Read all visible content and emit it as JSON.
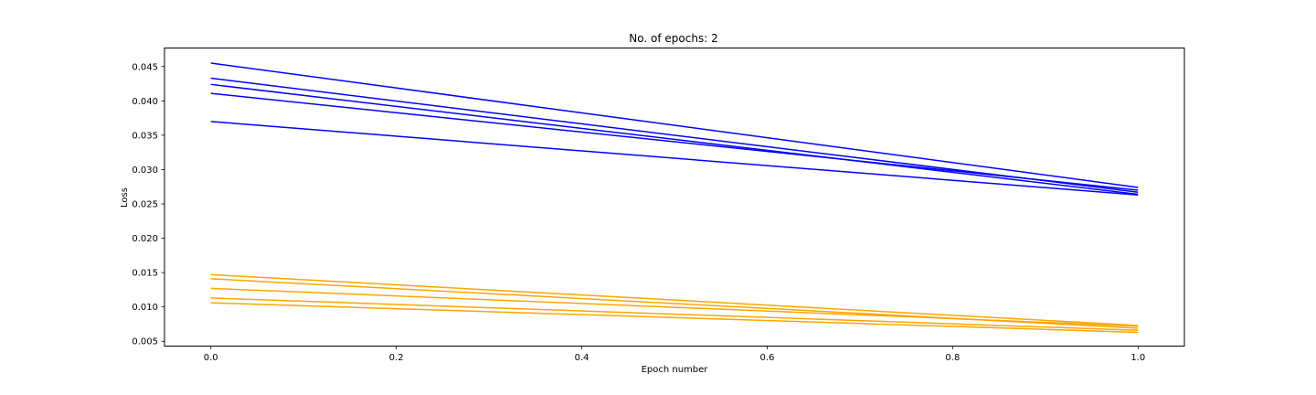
{
  "chart_data": {
    "type": "line",
    "title": "No. of epochs: 2",
    "xlabel": "Epoch number",
    "ylabel": "Loss",
    "xlim": [
      -0.05,
      1.05
    ],
    "ylim": [
      0.0043,
      0.0477
    ],
    "grid": false,
    "x": [
      0.0,
      1.0
    ],
    "x_ticks": [
      0.0,
      0.2,
      0.4,
      0.6,
      0.8,
      1.0
    ],
    "x_tick_labels": [
      "0.0",
      "0.2",
      "0.4",
      "0.6",
      "0.8",
      "1.0"
    ],
    "y_ticks": [
      0.005,
      0.01,
      0.015,
      0.02,
      0.025,
      0.03,
      0.035,
      0.04,
      0.045
    ],
    "y_tick_labels": [
      "0.005",
      "0.010",
      "0.015",
      "0.020",
      "0.025",
      "0.030",
      "0.035",
      "0.040",
      "0.045"
    ],
    "series": [
      {
        "color": "#0000ff",
        "values": [
          0.0455,
          0.0274
        ]
      },
      {
        "color": "#0000ff",
        "values": [
          0.0433,
          0.0267
        ]
      },
      {
        "color": "#0000ff",
        "values": [
          0.0424,
          0.0264
        ]
      },
      {
        "color": "#0000ff",
        "values": [
          0.0411,
          0.027
        ]
      },
      {
        "color": "#0000ff",
        "values": [
          0.037,
          0.0263
        ]
      },
      {
        "color": "#ffa500",
        "values": [
          0.0147,
          0.0073
        ]
      },
      {
        "color": "#ffa500",
        "values": [
          0.0141,
          0.0069
        ]
      },
      {
        "color": "#ffa500",
        "values": [
          0.0127,
          0.0072
        ]
      },
      {
        "color": "#ffa500",
        "values": [
          0.0113,
          0.0066
        ]
      },
      {
        "color": "#ffa500",
        "values": [
          0.0106,
          0.0063
        ]
      }
    ]
  }
}
